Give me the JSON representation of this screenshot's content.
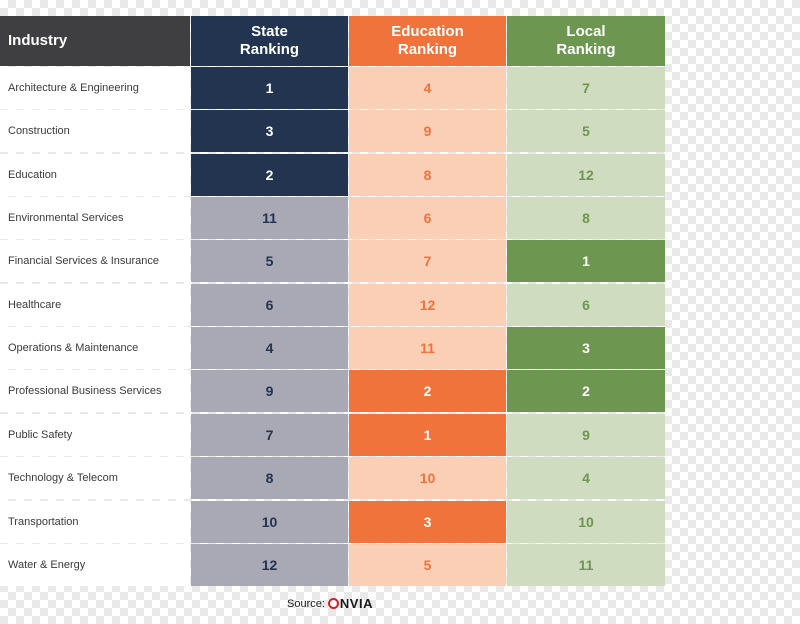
{
  "chart_data": {
    "type": "table",
    "columns": [
      "Industry",
      "State Ranking",
      "Education Ranking",
      "Local Ranking"
    ],
    "header_lines": {
      "industry": "Industry",
      "state": [
        "State",
        "Ranking"
      ],
      "education": [
        "Education",
        "Ranking"
      ],
      "local": [
        "Local",
        "Ranking"
      ]
    },
    "rows": [
      {
        "industry": "Architecture & Engineering",
        "state": 1,
        "education": 4,
        "local": 7
      },
      {
        "industry": "Construction",
        "state": 3,
        "education": 9,
        "local": 5
      },
      {
        "industry": "Education",
        "state": 2,
        "education": 8,
        "local": 12
      },
      {
        "industry": "Environmental Services",
        "state": 11,
        "education": 6,
        "local": 8
      },
      {
        "industry": "Financial Services & Insurance",
        "state": 5,
        "education": 7,
        "local": 1
      },
      {
        "industry": "Healthcare",
        "state": 6,
        "education": 12,
        "local": 6
      },
      {
        "industry": "Operations & Maintenance",
        "state": 4,
        "education": 11,
        "local": 3
      },
      {
        "industry": "Professional Business Services",
        "state": 9,
        "education": 2,
        "local": 2
      },
      {
        "industry": "Public Safety",
        "state": 7,
        "education": 1,
        "local": 9
      },
      {
        "industry": "Technology & Telecom",
        "state": 8,
        "education": 10,
        "local": 4
      },
      {
        "industry": "Transportation",
        "state": 10,
        "education": 3,
        "local": 10
      },
      {
        "industry": "Water & Energy",
        "state": 12,
        "education": 5,
        "local": 11
      }
    ],
    "highlight_rule": "top 3 ranks in each column highlighted",
    "colors": {
      "industry_header": "#3f3f41",
      "state_dark": "#223450",
      "state_light": "#a9a9b5",
      "state_light_text": "#223450",
      "education_dark": "#f0733b",
      "education_light": "#fbcfb5",
      "education_light_text": "#f0733b",
      "local_dark": "#6d9651",
      "local_light": "#cfdcbf",
      "local_light_text": "#6d9651"
    }
  },
  "source": {
    "label": "Source:",
    "logo_text": "NVIA"
  }
}
